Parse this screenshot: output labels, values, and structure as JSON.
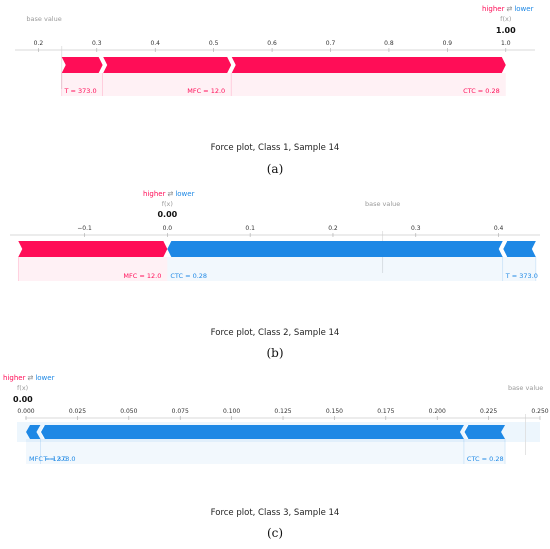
{
  "colors": {
    "positive": "#ff0d57",
    "negative": "#1e88e5"
  },
  "legend": {
    "higher": "higher",
    "arrows": "⇄",
    "lower": "lower"
  },
  "chart_data": [
    {
      "type": "force",
      "title": "Force plot, Class 1, Sample 14",
      "panel_label": "(a)",
      "base_value_label": "base value",
      "fx_label": "f(x)",
      "fx_value_text": "1.00",
      "xlim": [
        0.16,
        1.05
      ],
      "ticks": [
        0.2,
        0.3,
        0.4,
        0.5,
        0.6,
        0.7,
        0.8,
        0.9,
        1.0
      ],
      "base_value": 0.24,
      "fx": 1.0,
      "positive": [
        {
          "label": "T = 373.0",
          "from": 0.24,
          "to": 0.31
        },
        {
          "label": "MFC = 12.0",
          "from": 0.31,
          "to": 0.53
        },
        {
          "label": "CTC = 0.28",
          "from": 0.53,
          "to": 1.0
        }
      ],
      "negative": []
    },
    {
      "type": "force",
      "title": "Force plot, Class 2, Sample 14",
      "panel_label": "(b)",
      "base_value_label": "base value",
      "fx_label": "f(x)",
      "fx_value_text": "0.00",
      "xlim": [
        -0.19,
        0.45
      ],
      "ticks": [
        -0.1,
        0.0,
        0.1,
        0.2,
        0.3,
        0.4
      ],
      "base_value": 0.26,
      "fx": 0.0,
      "positive": [
        {
          "label": "MFC = 12.0",
          "from": -0.18,
          "to": 0.0
        }
      ],
      "negative": [
        {
          "label": "CTC = 0.28",
          "from": 0.0,
          "to": 0.405
        },
        {
          "label": "T = 373.0",
          "from": 0.405,
          "to": 0.445
        }
      ]
    },
    {
      "type": "force",
      "title": "Force plot, Class 3, Sample 14",
      "panel_label": "(c)",
      "base_value_label": "base value",
      "fx_label": "f(x)",
      "fx_value_text": "0.00",
      "xlim": [
        -0.0005,
        0.25
      ],
      "ticks": [
        0.0,
        0.025,
        0.05,
        0.075,
        0.1,
        0.125,
        0.15,
        0.175,
        0.2,
        0.225,
        0.25
      ],
      "base_value": 0.243,
      "fx": 0.0,
      "positive": [],
      "negative": [
        {
          "label": "MFC = 12.0",
          "from": 0.0,
          "to": 0.007
        },
        {
          "label": "T = 373.0",
          "from": 0.007,
          "to": 0.213
        },
        {
          "label": "CTC = 0.28",
          "from": 0.213,
          "to": 0.233
        }
      ]
    }
  ]
}
